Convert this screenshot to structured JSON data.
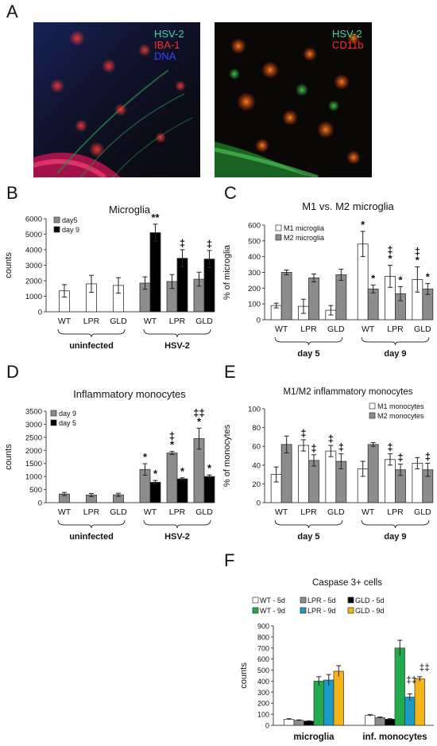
{
  "figure": {
    "panel_letters": {
      "A": "A",
      "B": "B",
      "C": "C",
      "D": "D",
      "E": "E",
      "F": "F"
    },
    "micrographs": [
      {
        "labels": [
          {
            "text": "HSV-2",
            "color": "#3fd8a8"
          },
          {
            "text": "IBA-1",
            "color": "#ff2a2a"
          },
          {
            "text": "DNA",
            "color": "#3344ff"
          }
        ]
      },
      {
        "labels": [
          {
            "text": "HSV-2",
            "color": "#3fd8a8"
          },
          {
            "text": "CD11b",
            "color": "#ff2a2a"
          }
        ]
      }
    ]
  },
  "colors": {
    "white_bar": "#ffffff",
    "gray_bar": "#8c8c8c",
    "black_bar": "#000000",
    "green_bar": "#22aa4d",
    "blue_bar": "#1a9cc6",
    "gold_bar": "#f5b419"
  },
  "chart_data": [
    {
      "id": "B",
      "type": "bar",
      "title": "Microglia",
      "ylabel": "counts",
      "ylim": [
        0,
        6000
      ],
      "yticks": [
        0,
        1000,
        2000,
        3000,
        4000,
        5000,
        6000
      ],
      "categories": [
        "WT",
        "LPR",
        "GLD",
        "WT",
        "LPR",
        "GLD"
      ],
      "groups": [
        {
          "label": "uninfected",
          "span": [
            0,
            2
          ]
        },
        {
          "label": "HSV-2",
          "span": [
            3,
            5
          ]
        }
      ],
      "legend": [
        {
          "label": "day5",
          "color": "gray"
        },
        {
          "label": "day 9",
          "color": "black"
        }
      ],
      "series": [
        {
          "name": "day5",
          "color": "white_at_uninfected_gray_at_hsv",
          "values": [
            1350,
            1800,
            1700,
            1850,
            1950,
            2100
          ],
          "errors": [
            400,
            550,
            500,
            400,
            450,
            450
          ]
        },
        {
          "name": "day 9",
          "values": [
            null,
            null,
            null,
            5100,
            3450,
            3400
          ],
          "errors": [
            null,
            null,
            null,
            550,
            550,
            550
          ]
        }
      ],
      "annotations": [
        {
          "series": 1,
          "index": 3,
          "text": "**"
        },
        {
          "series": 1,
          "index": 4,
          "text": "‡"
        },
        {
          "series": 1,
          "index": 5,
          "text": "‡"
        }
      ]
    },
    {
      "id": "C",
      "type": "bar",
      "title": "M1 vs. M2 microglia",
      "ylabel": "% of microglia",
      "ylim": [
        0,
        600
      ],
      "yticks": [
        0,
        100,
        200,
        300,
        400,
        500,
        600
      ],
      "categories": [
        "WT",
        "LPR",
        "GLD",
        "WT",
        "LPR",
        "GLD"
      ],
      "groups": [
        {
          "label": "day 5",
          "span": [
            0,
            2
          ]
        },
        {
          "label": "day 9",
          "span": [
            3,
            5
          ]
        }
      ],
      "legend": [
        {
          "label": "M1 microglia",
          "color": "white"
        },
        {
          "label": "M2 microglia",
          "color": "gray"
        }
      ],
      "series": [
        {
          "name": "M1 microglia",
          "values": [
            90,
            85,
            60,
            480,
            275,
            255
          ],
          "errors": [
            15,
            45,
            30,
            80,
            70,
            80
          ]
        },
        {
          "name": "M2 microglia",
          "values": [
            300,
            265,
            285,
            195,
            165,
            195
          ],
          "errors": [
            15,
            25,
            35,
            25,
            45,
            35
          ]
        }
      ],
      "annotations": [
        {
          "series": 0,
          "index": 3,
          "text": "*"
        },
        {
          "series": 1,
          "index": 3,
          "text": "*"
        },
        {
          "series": 0,
          "index": 4,
          "text": "‡\n*"
        },
        {
          "series": 1,
          "index": 4,
          "text": "*"
        },
        {
          "series": 0,
          "index": 5,
          "text": "‡\n*"
        },
        {
          "series": 1,
          "index": 5,
          "text": "*"
        }
      ]
    },
    {
      "id": "D",
      "type": "bar",
      "title": "Inflammatory monocytes",
      "ylabel": "counts",
      "ylim": [
        0,
        3500
      ],
      "yticks": [
        0,
        500,
        1000,
        1500,
        2000,
        2500,
        3000,
        3500
      ],
      "categories": [
        "WT",
        "LPR",
        "GLD",
        "WT",
        "LPR",
        "GLD"
      ],
      "groups": [
        {
          "label": "uninfected",
          "span": [
            0,
            2
          ]
        },
        {
          "label": "HSV-2",
          "span": [
            3,
            5
          ]
        }
      ],
      "legend": [
        {
          "label": "day 9",
          "color": "gray"
        },
        {
          "label": "day 5",
          "color": "black"
        }
      ],
      "series": [
        {
          "name": "day 9",
          "values": [
            330,
            290,
            300,
            1270,
            1900,
            2450
          ],
          "errors": [
            60,
            60,
            60,
            220,
            60,
            400
          ]
        },
        {
          "name": "day 5",
          "values": [
            null,
            null,
            null,
            780,
            910,
            1000
          ],
          "errors": [
            null,
            null,
            null,
            70,
            40,
            60
          ]
        }
      ],
      "annotations": [
        {
          "series": 0,
          "index": 3,
          "text": "*"
        },
        {
          "series": 1,
          "index": 3,
          "text": "*"
        },
        {
          "series": 0,
          "index": 4,
          "text": "‡\n*"
        },
        {
          "series": 1,
          "index": 4,
          "text": "*"
        },
        {
          "series": 0,
          "index": 5,
          "text": "‡‡\n*"
        },
        {
          "series": 1,
          "index": 5,
          "text": "*"
        }
      ]
    },
    {
      "id": "E",
      "type": "bar",
      "title": "M1/M2 inflammatory monocytes",
      "ylabel": "% of monocytes",
      "ylim": [
        0,
        100
      ],
      "yticks": [
        0,
        20,
        40,
        60,
        80,
        100
      ],
      "categories": [
        "WT",
        "LPR",
        "GLD",
        "WT",
        "LPR",
        "GLD"
      ],
      "groups": [
        {
          "label": "day 5",
          "span": [
            0,
            2
          ]
        },
        {
          "label": "day 9",
          "span": [
            3,
            5
          ]
        }
      ],
      "legend": [
        {
          "label": "M1 monocytes",
          "color": "white"
        },
        {
          "label": "M2 monocytes",
          "color": "gray"
        }
      ],
      "series": [
        {
          "name": "M1 monocytes",
          "values": [
            30,
            61,
            55,
            36,
            46,
            42
          ],
          "errors": [
            8,
            6,
            6,
            8,
            6,
            6
          ]
        },
        {
          "name": "M2 monocytes",
          "values": [
            62,
            45,
            44,
            62,
            35,
            35
          ],
          "errors": [
            9,
            6,
            8,
            2,
            6,
            7
          ]
        }
      ],
      "annotations": [
        {
          "series": 0,
          "index": 1,
          "text": "‡"
        },
        {
          "series": 1,
          "index": 1,
          "text": "‡"
        },
        {
          "series": 0,
          "index": 2,
          "text": "‡"
        },
        {
          "series": 1,
          "index": 2,
          "text": "‡"
        },
        {
          "series": 0,
          "index": 4,
          "text": "‡"
        },
        {
          "series": 1,
          "index": 4,
          "text": "‡"
        },
        {
          "series": 1,
          "index": 5,
          "text": "‡"
        }
      ]
    },
    {
      "id": "F",
      "type": "bar",
      "title": "Caspase 3+ cells",
      "ylabel": "counts",
      "ylim": [
        0,
        900
      ],
      "yticks": [
        0,
        100,
        200,
        300,
        400,
        500,
        600,
        700,
        800,
        900
      ],
      "categories": [
        "microglia",
        "inf. monocytes"
      ],
      "legend": [
        {
          "label": "WT - 5d",
          "color": "white"
        },
        {
          "label": "LPR - 5d",
          "color": "gray"
        },
        {
          "label": "GLD - 5d",
          "color": "black"
        },
        {
          "label": "WT - 9d",
          "color": "green"
        },
        {
          "label": "LPR - 9d",
          "color": "blue"
        },
        {
          "label": "GLD - 9d",
          "color": "gold"
        }
      ],
      "series": [
        {
          "name": "WT - 5d",
          "values": [
            55,
            90
          ],
          "errors": [
            5,
            8
          ]
        },
        {
          "name": "LPR - 5d",
          "values": [
            45,
            70
          ],
          "errors": [
            4,
            5
          ]
        },
        {
          "name": "GLD - 5d",
          "values": [
            38,
            55
          ],
          "errors": [
            3,
            5
          ]
        },
        {
          "name": "WT - 9d",
          "values": [
            400,
            700
          ],
          "errors": [
            40,
            70
          ]
        },
        {
          "name": "LPR - 9d",
          "values": [
            410,
            255
          ],
          "errors": [
            50,
            30
          ]
        },
        {
          "name": "GLD - 9d",
          "values": [
            490,
            420
          ],
          "errors": [
            50,
            20
          ]
        }
      ],
      "annotations": [
        {
          "series": 4,
          "index": 1,
          "text": "‡‡"
        },
        {
          "series": 5,
          "index": 1,
          "text": "‡‡"
        }
      ]
    }
  ]
}
